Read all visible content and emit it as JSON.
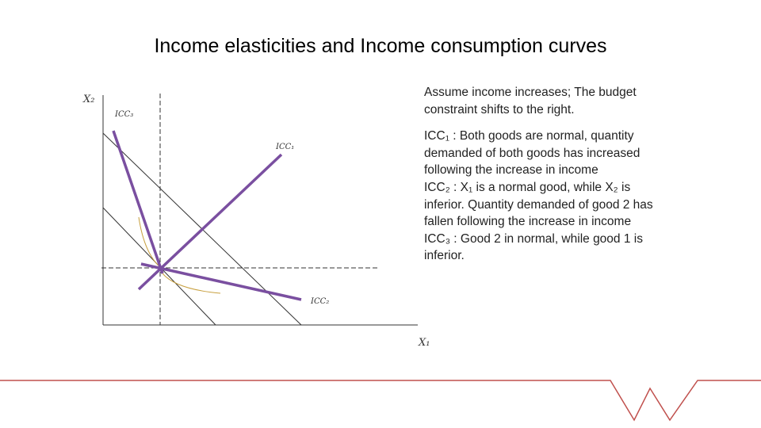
{
  "title": "Income elasticities and Income consumption curves",
  "diagram": {
    "y_axis_label": "X₂",
    "x_axis_label": "X₁",
    "icc3_label": "ICC₃",
    "icc1_label": "ICC₁",
    "icc2_label": "ICC₂"
  },
  "text": {
    "paragraphs": [
      "Assume income increases; The budget constraint shifts to the right.",
      "ICC₁ : Both goods are normal, quantity demanded of both goods has increased following the increase in income",
      "ICC₂ : X₁ is a normal good, while X₂ is inferior. Quantity demanded of good 2 has fallen following the increase in income",
      "ICC₃ : Good 2 in normal, while good 1 is inferior."
    ]
  }
}
